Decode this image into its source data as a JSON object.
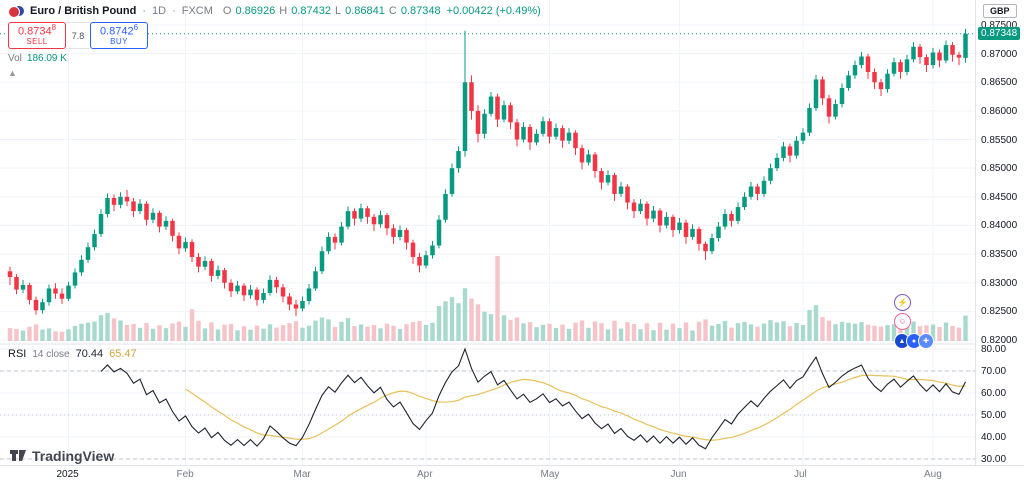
{
  "header": {
    "symbol": "Euro / British Pound",
    "sep1": "·",
    "timeframe": "1D",
    "sep2": "·",
    "exchange": "FXCM",
    "o_label": "O",
    "o_value": "0.86926",
    "h_label": "H",
    "h_value": "0.87432",
    "l_label": "L",
    "l_value": "0.86841",
    "c_label": "C",
    "c_value": "0.87348",
    "change_value": "+0.00422 (+0.49%)"
  },
  "order_panel": {
    "sell_price_main": "0.8734",
    "sell_price_sup": "8",
    "sell_label": "SELL",
    "spread": "7.8",
    "buy_price_main": "0.8742",
    "buy_price_sup": "6",
    "buy_label": "BUY"
  },
  "volume_row": {
    "label": "Vol",
    "value": "186.09 K"
  },
  "rsi_legend": {
    "name": "RSI",
    "params": "14 close",
    "value": "70.44",
    "ma_value": "65.47"
  },
  "price_axis": {
    "currency": "GBP",
    "labels": [
      "0.87500",
      "0.87000",
      "0.86500",
      "0.86000",
      "0.85500",
      "0.85000",
      "0.84500",
      "0.84000",
      "0.83500",
      "0.83000",
      "0.82500",
      "0.82000"
    ],
    "last_price": "0.87348"
  },
  "rsi_axis": {
    "labels": [
      "80.00",
      "70.00",
      "60.00",
      "50.00",
      "40.00",
      "30.00"
    ]
  },
  "footer": {
    "brand": "TradingView"
  },
  "icons": {
    "lightning": "⚡",
    "emoji": "☺",
    "dot1": "▲",
    "dot2": "●",
    "dot3": "✚"
  },
  "colors": {
    "up": "#089981",
    "down": "#f23645",
    "vol_up": "#a8d9ce",
    "vol_down": "#f6c3c8",
    "rsi_line": "#1e222d",
    "rsi_ma": "#e8c15a",
    "grid": "#f0f3fa",
    "divider": "#e0e3eb",
    "last_tag_bg": "#089981",
    "dashed_level": "#b2b5be"
  },
  "chart_data": {
    "type": "candlestick",
    "title": "Euro / British Pound · 1D · FXCM",
    "panes": [
      "price+volume",
      "rsi"
    ],
    "price_axis_range": [
      0.8193,
      0.8794
    ],
    "rsi_axis_range": [
      27,
      82
    ],
    "rsi_levels": [
      70,
      50,
      30
    ],
    "indicators": {
      "rsi": {
        "length": 14,
        "source": "close",
        "last": 70.44,
        "ma_last": 65.47
      }
    },
    "month_ticks": [
      {
        "label": "2025",
        "day": 9,
        "year": true
      },
      {
        "label": "Feb",
        "day": 27
      },
      {
        "label": "Mar",
        "day": 45
      },
      {
        "label": "Apr",
        "day": 64
      },
      {
        "label": "May",
        "day": 83
      },
      {
        "label": "Jun",
        "day": 103
      },
      {
        "label": "Jul",
        "day": 122
      },
      {
        "label": "Aug",
        "day": 142
      }
    ],
    "columns": [
      "open",
      "high",
      "low",
      "close",
      "volume_k"
    ],
    "candles": [
      [
        0.832,
        0.8328,
        0.8296,
        0.831,
        95
      ],
      [
        0.831,
        0.8315,
        0.828,
        0.8288,
        88
      ],
      [
        0.8288,
        0.8305,
        0.8282,
        0.8296,
        76
      ],
      [
        0.8296,
        0.83,
        0.8262,
        0.827,
        104
      ],
      [
        0.827,
        0.8276,
        0.8244,
        0.8252,
        121
      ],
      [
        0.8252,
        0.8272,
        0.8246,
        0.8266,
        83
      ],
      [
        0.8266,
        0.8297,
        0.826,
        0.829,
        92
      ],
      [
        0.829,
        0.8299,
        0.8272,
        0.8281,
        71
      ],
      [
        0.8281,
        0.829,
        0.8263,
        0.8272,
        68
      ],
      [
        0.8272,
        0.8302,
        0.8268,
        0.8295,
        85
      ],
      [
        0.8295,
        0.8325,
        0.829,
        0.8318,
        110
      ],
      [
        0.8318,
        0.8348,
        0.8312,
        0.834,
        126
      ],
      [
        0.834,
        0.837,
        0.8335,
        0.8362,
        134
      ],
      [
        0.8362,
        0.8393,
        0.8356,
        0.8385,
        142
      ],
      [
        0.8385,
        0.8428,
        0.838,
        0.842,
        188
      ],
      [
        0.842,
        0.8456,
        0.8414,
        0.8448,
        205
      ],
      [
        0.8448,
        0.8454,
        0.8425,
        0.8436,
        165
      ],
      [
        0.8436,
        0.8458,
        0.843,
        0.845,
        150
      ],
      [
        0.845,
        0.8462,
        0.8434,
        0.8442,
        118
      ],
      [
        0.8442,
        0.8448,
        0.8415,
        0.8425,
        124
      ],
      [
        0.8425,
        0.8446,
        0.842,
        0.8438,
        96
      ],
      [
        0.8438,
        0.8442,
        0.84,
        0.841,
        132
      ],
      [
        0.841,
        0.843,
        0.8404,
        0.8422,
        89
      ],
      [
        0.8422,
        0.8426,
        0.8388,
        0.8398,
        115
      ],
      [
        0.8398,
        0.8416,
        0.8392,
        0.8408,
        94
      ],
      [
        0.8408,
        0.8412,
        0.8372,
        0.8382,
        128
      ],
      [
        0.8382,
        0.8388,
        0.835,
        0.836,
        141
      ],
      [
        0.836,
        0.8379,
        0.8354,
        0.8371,
        103
      ],
      [
        0.8371,
        0.8376,
        0.8336,
        0.8345,
        232
      ],
      [
        0.8345,
        0.8352,
        0.8318,
        0.8328,
        147
      ],
      [
        0.8328,
        0.8346,
        0.8322,
        0.8338,
        92
      ],
      [
        0.8338,
        0.8342,
        0.8302,
        0.8312,
        136
      ],
      [
        0.8312,
        0.833,
        0.8306,
        0.8322,
        84
      ],
      [
        0.8322,
        0.8326,
        0.829,
        0.83,
        119
      ],
      [
        0.83,
        0.8306,
        0.8275,
        0.8285,
        125
      ],
      [
        0.8285,
        0.8303,
        0.828,
        0.8295,
        78
      ],
      [
        0.8295,
        0.8299,
        0.8268,
        0.8278,
        107
      ],
      [
        0.8278,
        0.8296,
        0.8272,
        0.8288,
        82
      ],
      [
        0.8288,
        0.8292,
        0.826,
        0.827,
        113
      ],
      [
        0.827,
        0.829,
        0.8264,
        0.8282,
        90
      ],
      [
        0.8282,
        0.8313,
        0.8278,
        0.8305,
        122
      ],
      [
        0.8305,
        0.831,
        0.8282,
        0.8292,
        98
      ],
      [
        0.8292,
        0.8298,
        0.8266,
        0.8276,
        116
      ],
      [
        0.8276,
        0.8282,
        0.8252,
        0.8262,
        131
      ],
      [
        0.8262,
        0.827,
        0.8242,
        0.8255,
        144
      ],
      [
        0.8255,
        0.8276,
        0.825,
        0.8268,
        97
      ],
      [
        0.8268,
        0.8298,
        0.8262,
        0.829,
        112
      ],
      [
        0.829,
        0.8328,
        0.8286,
        0.832,
        149
      ],
      [
        0.832,
        0.8363,
        0.8315,
        0.8355,
        172
      ],
      [
        0.8355,
        0.8388,
        0.835,
        0.838,
        158
      ],
      [
        0.838,
        0.8386,
        0.8358,
        0.837,
        102
      ],
      [
        0.837,
        0.8406,
        0.8365,
        0.8398,
        140
      ],
      [
        0.8398,
        0.8433,
        0.8393,
        0.8425,
        167
      ],
      [
        0.8425,
        0.843,
        0.84,
        0.8412,
        109
      ],
      [
        0.8412,
        0.8438,
        0.8406,
        0.843,
        121
      ],
      [
        0.843,
        0.8434,
        0.8403,
        0.8415,
        105
      ],
      [
        0.8415,
        0.842,
        0.839,
        0.8402,
        117
      ],
      [
        0.8402,
        0.8426,
        0.8396,
        0.8418,
        93
      ],
      [
        0.8418,
        0.8422,
        0.8383,
        0.8395,
        127
      ],
      [
        0.8395,
        0.8402,
        0.8368,
        0.838,
        111
      ],
      [
        0.838,
        0.84,
        0.8374,
        0.8392,
        87
      ],
      [
        0.8392,
        0.8396,
        0.8358,
        0.837,
        123
      ],
      [
        0.837,
        0.8375,
        0.8333,
        0.8345,
        139
      ],
      [
        0.8345,
        0.8352,
        0.8318,
        0.833,
        146
      ],
      [
        0.833,
        0.8356,
        0.8325,
        0.8348,
        118
      ],
      [
        0.8348,
        0.8373,
        0.8342,
        0.8365,
        133
      ],
      [
        0.8365,
        0.8418,
        0.836,
        0.841,
        255
      ],
      [
        0.841,
        0.8463,
        0.8405,
        0.8455,
        290
      ],
      [
        0.8455,
        0.8508,
        0.845,
        0.85,
        320
      ],
      [
        0.85,
        0.8538,
        0.8492,
        0.853,
        276
      ],
      [
        0.853,
        0.874,
        0.852,
        0.865,
        385
      ],
      [
        0.865,
        0.8662,
        0.8585,
        0.86,
        310
      ],
      [
        0.86,
        0.861,
        0.8545,
        0.856,
        268
      ],
      [
        0.856,
        0.8603,
        0.8552,
        0.8595,
        214
      ],
      [
        0.8595,
        0.8633,
        0.859,
        0.8625,
        196
      ],
      [
        0.8625,
        0.863,
        0.8572,
        0.8585,
        620
      ],
      [
        0.8585,
        0.8618,
        0.858,
        0.861,
        188
      ],
      [
        0.861,
        0.8615,
        0.8568,
        0.858,
        154
      ],
      [
        0.858,
        0.8586,
        0.8538,
        0.855,
        171
      ],
      [
        0.855,
        0.858,
        0.8545,
        0.8572,
        129
      ],
      [
        0.8572,
        0.8577,
        0.8532,
        0.8545,
        138
      ],
      [
        0.8545,
        0.8568,
        0.854,
        0.856,
        101
      ],
      [
        0.856,
        0.859,
        0.8555,
        0.8582,
        118
      ],
      [
        0.8582,
        0.8587,
        0.8543,
        0.8555,
        126
      ],
      [
        0.8555,
        0.8578,
        0.855,
        0.857,
        95
      ],
      [
        0.857,
        0.8575,
        0.8536,
        0.8548,
        120
      ],
      [
        0.8548,
        0.857,
        0.8542,
        0.8562,
        88
      ],
      [
        0.8562,
        0.8566,
        0.8523,
        0.8535,
        134
      ],
      [
        0.8535,
        0.8541,
        0.8498,
        0.851,
        150
      ],
      [
        0.851,
        0.8532,
        0.8505,
        0.8524,
        96
      ],
      [
        0.8524,
        0.8528,
        0.8483,
        0.8495,
        142
      ],
      [
        0.8495,
        0.85,
        0.8463,
        0.8475,
        130
      ],
      [
        0.8475,
        0.8496,
        0.847,
        0.8488,
        84
      ],
      [
        0.8488,
        0.8492,
        0.8443,
        0.8455,
        148
      ],
      [
        0.8455,
        0.8476,
        0.845,
        0.8468,
        91
      ],
      [
        0.8468,
        0.8472,
        0.8428,
        0.844,
        137
      ],
      [
        0.844,
        0.8446,
        0.8413,
        0.8425,
        124
      ],
      [
        0.8425,
        0.8446,
        0.842,
        0.8438,
        86
      ],
      [
        0.8438,
        0.8442,
        0.84,
        0.8412,
        129
      ],
      [
        0.8412,
        0.8434,
        0.8406,
        0.8426,
        79
      ],
      [
        0.8426,
        0.843,
        0.8388,
        0.84,
        133
      ],
      [
        0.84,
        0.8423,
        0.8395,
        0.8415,
        82
      ],
      [
        0.8415,
        0.8419,
        0.838,
        0.8392,
        127
      ],
      [
        0.8392,
        0.8413,
        0.8386,
        0.8405,
        94
      ],
      [
        0.8405,
        0.841,
        0.8368,
        0.838,
        135
      ],
      [
        0.838,
        0.8402,
        0.8375,
        0.8394,
        77
      ],
      [
        0.8394,
        0.8398,
        0.8356,
        0.8368,
        141
      ],
      [
        0.8368,
        0.8372,
        0.834,
        0.8355,
        158
      ],
      [
        0.8355,
        0.8386,
        0.835,
        0.8378,
        112
      ],
      [
        0.8378,
        0.8406,
        0.8372,
        0.8398,
        125
      ],
      [
        0.8398,
        0.8428,
        0.8393,
        0.842,
        147
      ],
      [
        0.842,
        0.8426,
        0.8398,
        0.8408,
        98
      ],
      [
        0.8408,
        0.844,
        0.8402,
        0.8432,
        130
      ],
      [
        0.8432,
        0.8458,
        0.8427,
        0.845,
        139
      ],
      [
        0.845,
        0.8476,
        0.8445,
        0.8468,
        121
      ],
      [
        0.8468,
        0.8473,
        0.8444,
        0.8455,
        104
      ],
      [
        0.8455,
        0.8486,
        0.845,
        0.8478,
        128
      ],
      [
        0.8478,
        0.8508,
        0.8472,
        0.85,
        152
      ],
      [
        0.85,
        0.8526,
        0.8495,
        0.8518,
        136
      ],
      [
        0.8518,
        0.8546,
        0.8512,
        0.8538,
        144
      ],
      [
        0.8538,
        0.8543,
        0.851,
        0.8522,
        108
      ],
      [
        0.8522,
        0.8556,
        0.8517,
        0.8548,
        131
      ],
      [
        0.8548,
        0.857,
        0.8542,
        0.8562,
        117
      ],
      [
        0.8562,
        0.8613,
        0.8556,
        0.8605,
        226
      ],
      [
        0.8605,
        0.8663,
        0.86,
        0.8655,
        261
      ],
      [
        0.8655,
        0.866,
        0.861,
        0.8622,
        175
      ],
      [
        0.8622,
        0.8628,
        0.8578,
        0.859,
        149
      ],
      [
        0.859,
        0.862,
        0.8585,
        0.8612,
        122
      ],
      [
        0.8612,
        0.8648,
        0.8606,
        0.864,
        140
      ],
      [
        0.864,
        0.867,
        0.8635,
        0.8662,
        133
      ],
      [
        0.8662,
        0.8688,
        0.8656,
        0.868,
        126
      ],
      [
        0.868,
        0.8703,
        0.8674,
        0.8695,
        138
      ],
      [
        0.8695,
        0.87,
        0.8656,
        0.8668,
        119
      ],
      [
        0.8668,
        0.8674,
        0.8638,
        0.865,
        112
      ],
      [
        0.865,
        0.8656,
        0.8626,
        0.8638,
        105
      ],
      [
        0.8638,
        0.8673,
        0.8632,
        0.8665,
        116
      ],
      [
        0.8665,
        0.8693,
        0.866,
        0.8685,
        123
      ],
      [
        0.8685,
        0.869,
        0.8656,
        0.8668,
        99
      ],
      [
        0.8668,
        0.8698,
        0.8662,
        0.869,
        127
      ],
      [
        0.869,
        0.872,
        0.8685,
        0.8712,
        142
      ],
      [
        0.8712,
        0.8717,
        0.8682,
        0.8694,
        108
      ],
      [
        0.8694,
        0.8699,
        0.8668,
        0.868,
        114
      ],
      [
        0.868,
        0.871,
        0.8674,
        0.8702,
        120
      ],
      [
        0.8702,
        0.8707,
        0.8676,
        0.8688,
        102
      ],
      [
        0.8688,
        0.8723,
        0.8683,
        0.8715,
        135
      ],
      [
        0.8715,
        0.872,
        0.8686,
        0.8698,
        110
      ],
      [
        0.8698,
        0.8703,
        0.868,
        0.8693,
        97
      ],
      [
        0.86926,
        0.87432,
        0.86841,
        0.87348,
        186
      ]
    ]
  }
}
